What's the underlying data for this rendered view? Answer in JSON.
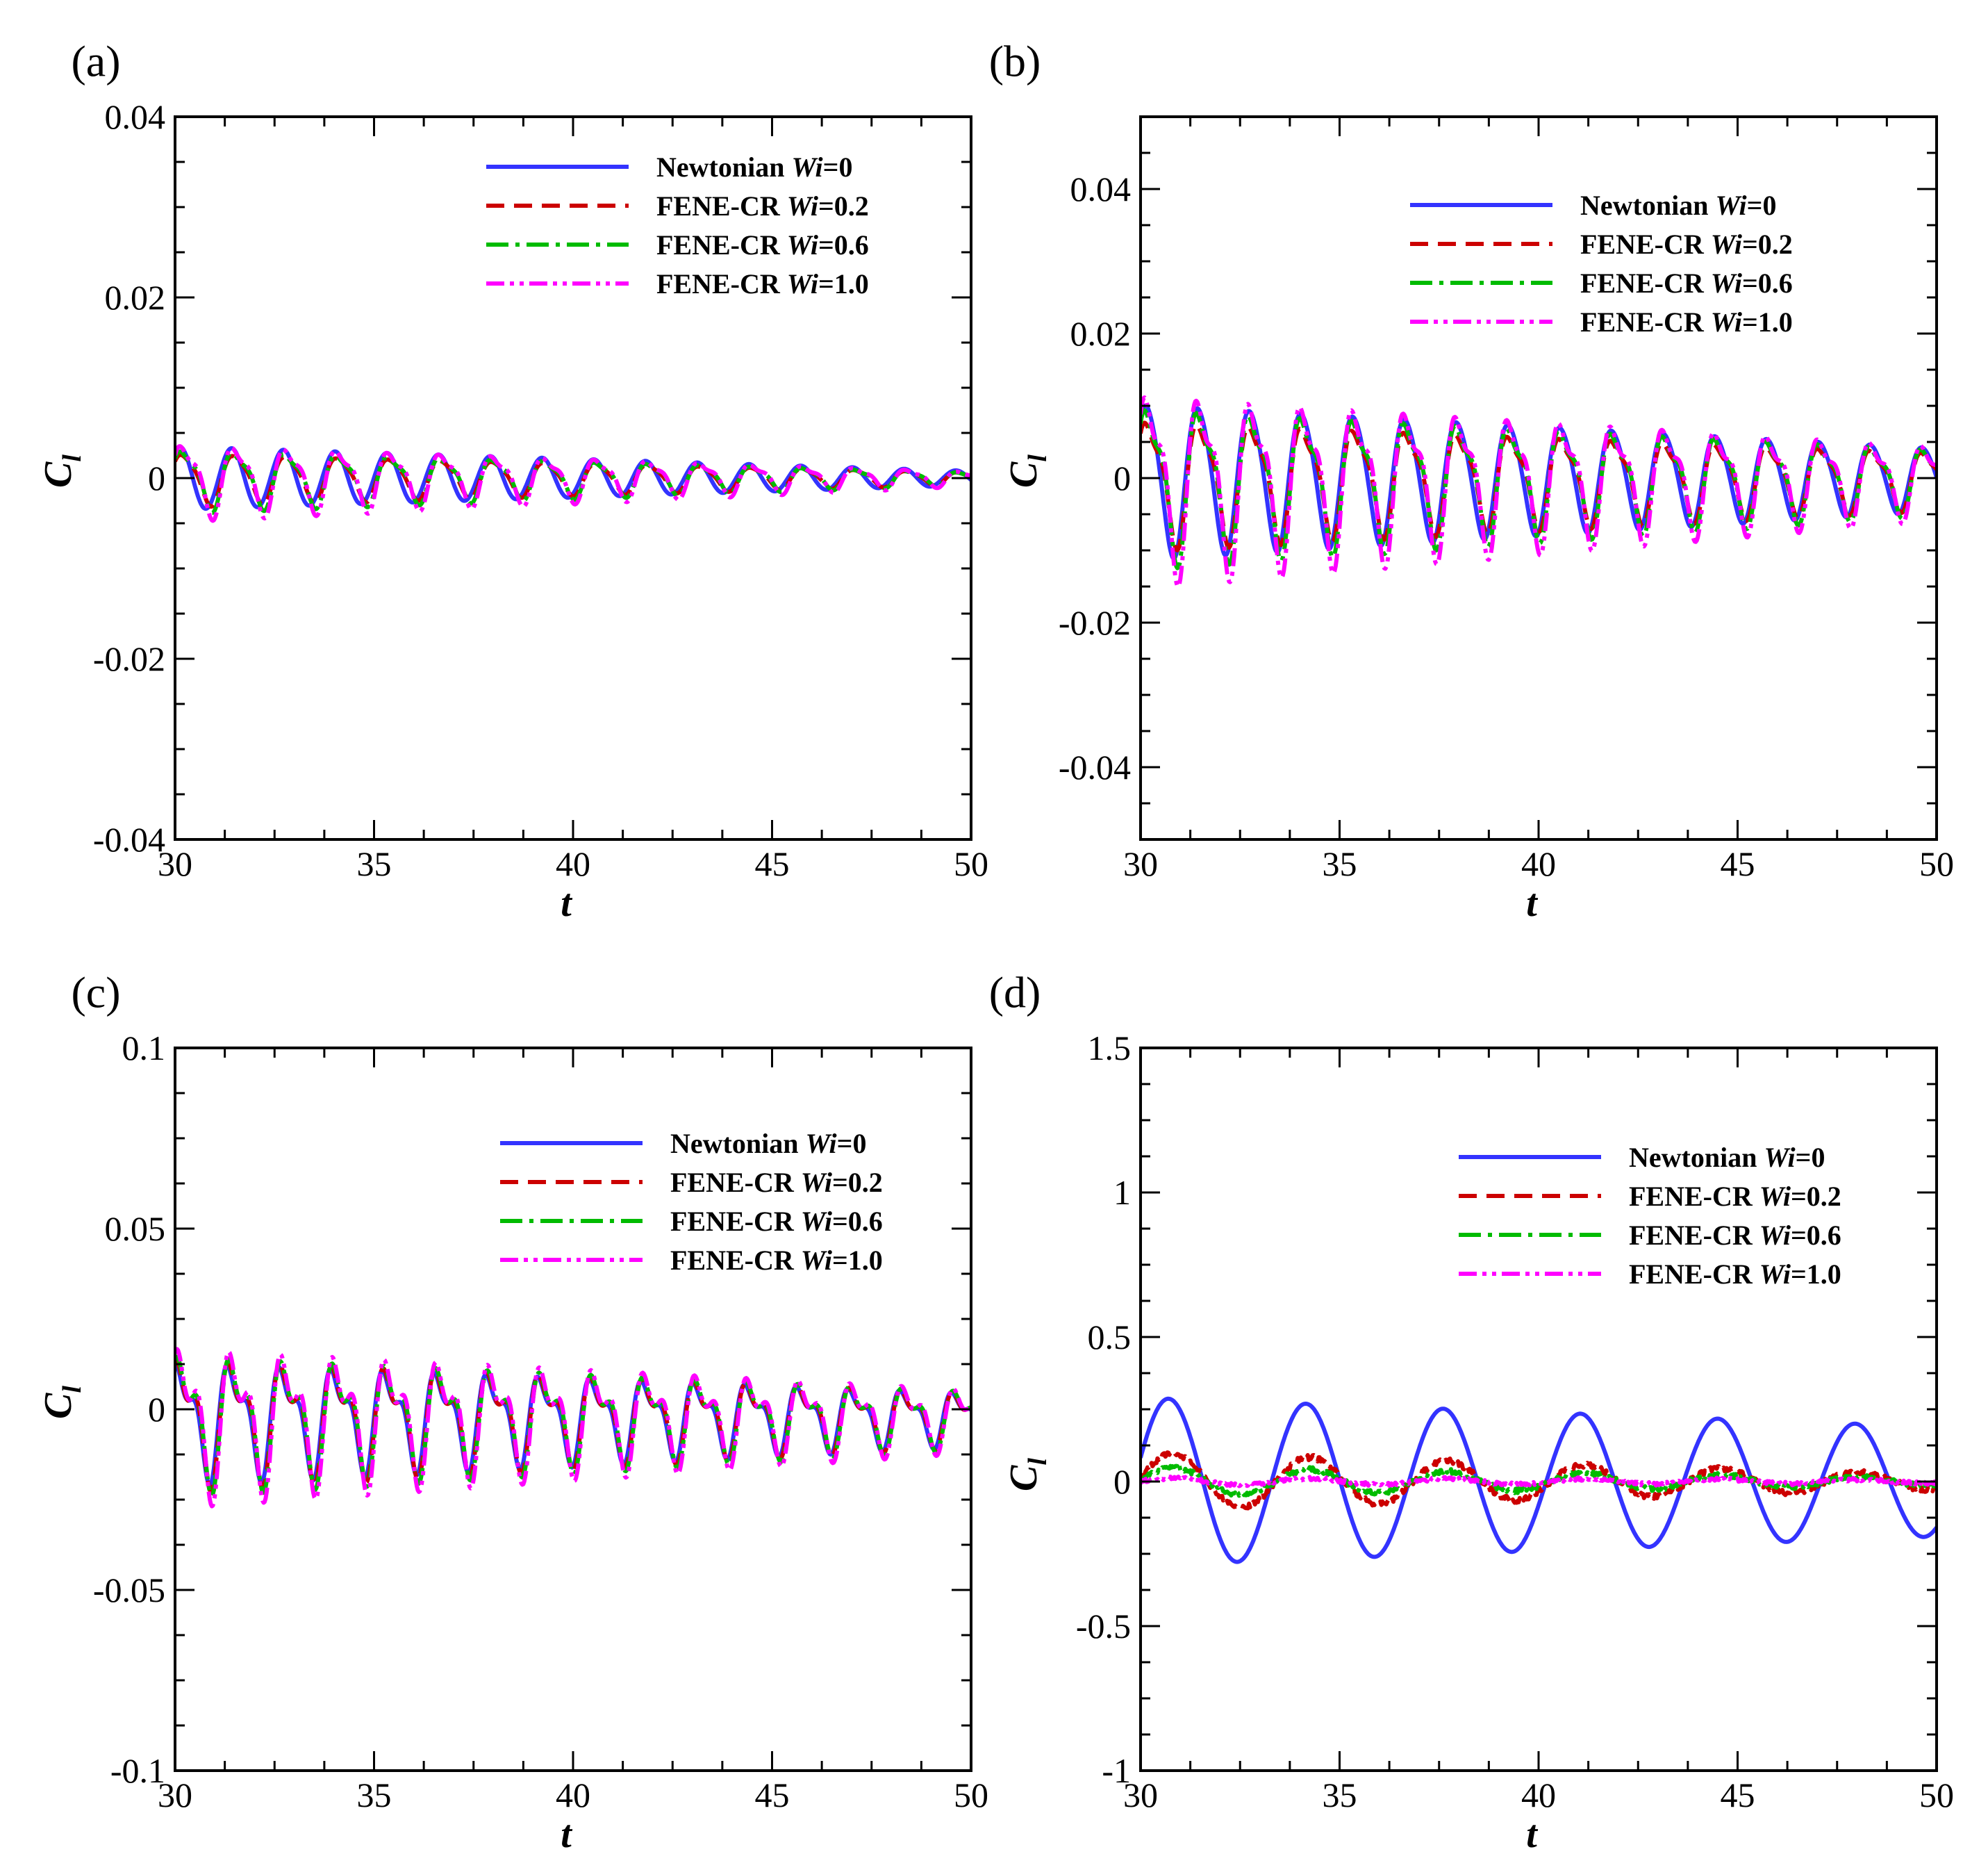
{
  "figure": {
    "legend": [
      {
        "name": "Newtonian",
        "wi_symbol": "Wi",
        "wi_value": "=0"
      },
      {
        "name": "FENE-CR",
        "wi_symbol": "Wi",
        "wi_value": "=0.2"
      },
      {
        "name": "FENE-CR",
        "wi_symbol": "Wi",
        "wi_value": "=0.6"
      },
      {
        "name": "FENE-CR",
        "wi_symbol": "Wi",
        "wi_value": "=1.0"
      }
    ],
    "colors": {
      "newtonian": "#3333ff",
      "wi02": "#cc0000",
      "wi06": "#00bb00",
      "wi10": "#ff00ff"
    }
  },
  "chart_data": [
    {
      "type": "line",
      "panel": "(a)",
      "xlabel": "t",
      "ylabel_main": "C",
      "ylabel_sub": "l",
      "xlim": [
        30,
        50
      ],
      "ylim": [
        -0.04,
        0.04
      ],
      "xticks": [
        30,
        35,
        40,
        45,
        50
      ],
      "xtick_labels": [
        "30",
        "35",
        "40",
        "45",
        "50"
      ],
      "yticks": [
        -0.04,
        -0.02,
        0,
        0.02,
        0.04
      ],
      "ytick_labels": [
        "-0.04",
        "-0.02",
        "0",
        "0.02",
        "0.04"
      ],
      "series": [
        {
          "name": "Newtonian Wi=0",
          "period": 1.3,
          "amp_start": 0.0035,
          "amp_end": 0.0008,
          "mean": 0,
          "phase": 0.5,
          "harmonic": 0
        },
        {
          "name": "FENE-CR Wi=0.2",
          "period": 1.3,
          "amp_start": 0.003,
          "amp_end": 0.0007,
          "mean": 0,
          "phase": 0.0,
          "harmonic": 0.2
        },
        {
          "name": "FENE-CR Wi=0.6",
          "period": 1.3,
          "amp_start": 0.0035,
          "amp_end": 0.0007,
          "mean": 0,
          "phase": -0.1,
          "harmonic": 0.3
        },
        {
          "name": "FENE-CR Wi=1.0",
          "period": 1.3,
          "amp_start": 0.0042,
          "amp_end": 0.0008,
          "mean": 0,
          "phase": -0.15,
          "harmonic": 0.35
        }
      ]
    },
    {
      "type": "line",
      "panel": "(b)",
      "xlabel": "t",
      "ylabel_main": "C",
      "ylabel_sub": "l",
      "xlim": [
        30,
        50
      ],
      "ylim": [
        -0.05,
        0.05
      ],
      "xticks": [
        30,
        35,
        40,
        45,
        50
      ],
      "xtick_labels": [
        "30",
        "35",
        "40",
        "45",
        "50"
      ],
      "yticks": [
        -0.04,
        -0.02,
        0,
        0.02,
        0.04
      ],
      "ytick_labels": [
        "-0.04",
        "-0.02",
        "0",
        "0.02",
        "0.04"
      ],
      "series": [
        {
          "name": "Newtonian Wi=0",
          "period": 1.3,
          "amp_start": 0.011,
          "amp_end": 0.0045,
          "mean": 0,
          "phase": 0.3,
          "harmonic": 0.1
        },
        {
          "name": "FENE-CR Wi=0.2",
          "period": 1.3,
          "amp_start": 0.009,
          "amp_end": 0.004,
          "mean": 0,
          "phase": 0.0,
          "harmonic": 0.3
        },
        {
          "name": "FENE-CR Wi=0.6",
          "period": 1.3,
          "amp_start": 0.011,
          "amp_end": 0.0045,
          "mean": 0,
          "phase": -0.05,
          "harmonic": 0.35
        },
        {
          "name": "FENE-CR Wi=1.0",
          "period": 1.3,
          "amp_start": 0.013,
          "amp_end": 0.005,
          "mean": 0,
          "phase": -0.1,
          "harmonic": 0.4
        }
      ]
    },
    {
      "type": "line",
      "panel": "(c)",
      "xlabel": "t",
      "ylabel_main": "C",
      "ylabel_sub": "l",
      "xlim": [
        30,
        50
      ],
      "ylim": [
        -0.1,
        0.1
      ],
      "xticks": [
        30,
        35,
        40,
        45,
        50
      ],
      "xtick_labels": [
        "30",
        "35",
        "40",
        "45",
        "50"
      ],
      "yticks": [
        -0.1,
        -0.05,
        0,
        0.05,
        0.1
      ],
      "ytick_labels": [
        "-0.1",
        "-0.05",
        "0",
        "0.05",
        "0.1"
      ],
      "series": [
        {
          "name": "Newtonian Wi=0",
          "period": 1.3,
          "amp_start": 0.016,
          "amp_end": 0.007,
          "mean": -0.002,
          "phase": 0.3,
          "harmonic": 0.5
        },
        {
          "name": "FENE-CR Wi=0.2",
          "period": 1.3,
          "amp_start": 0.017,
          "amp_end": 0.007,
          "mean": -0.002,
          "phase": 0.15,
          "harmonic": 0.55
        },
        {
          "name": "FENE-CR Wi=0.6",
          "period": 1.3,
          "amp_start": 0.018,
          "amp_end": 0.0075,
          "mean": -0.002,
          "phase": 0.05,
          "harmonic": 0.55
        },
        {
          "name": "FENE-CR Wi=1.0",
          "period": 1.3,
          "amp_start": 0.02,
          "amp_end": 0.008,
          "mean": -0.002,
          "phase": 0.0,
          "harmonic": 0.6
        }
      ]
    },
    {
      "type": "line",
      "panel": "(d)",
      "xlabel": "t",
      "ylabel_main": "C",
      "ylabel_sub": "l",
      "xlim": [
        30,
        50
      ],
      "ylim": [
        -1,
        1.5
      ],
      "xticks": [
        30,
        35,
        40,
        45,
        50
      ],
      "xtick_labels": [
        "30",
        "35",
        "40",
        "45",
        "50"
      ],
      "yticks": [
        -1,
        -0.5,
        0,
        0.5,
        1,
        1.5
      ],
      "ytick_labels": [
        "-1",
        "-0.5",
        "0",
        "0.5",
        "1",
        "1.5"
      ],
      "series": [
        {
          "name": "Newtonian Wi=0",
          "period": 3.45,
          "amp_start": 0.29,
          "amp_end": 0.19,
          "mean": 0,
          "phase": 2.2,
          "harmonic": 0
        },
        {
          "name": "FENE-CR Wi=0.2",
          "period": 3.45,
          "amp_start": 0.1,
          "amp_end": 0.025,
          "mean": 0,
          "phase": 2.0,
          "harmonic": 0,
          "noise": 0.01
        },
        {
          "name": "FENE-CR Wi=0.6",
          "period": 3.45,
          "amp_start": 0.05,
          "amp_end": 0.012,
          "mean": 0,
          "phase": 2.0,
          "harmonic": 0,
          "noise": 0.008
        },
        {
          "name": "FENE-CR Wi=1.0",
          "period": 3.45,
          "amp_start": 0.012,
          "amp_end": 0.006,
          "mean": 0,
          "phase": 2.0,
          "harmonic": 0,
          "noise": 0.006
        }
      ]
    }
  ]
}
